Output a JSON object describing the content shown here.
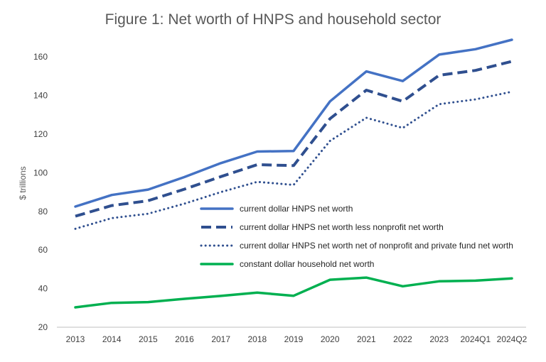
{
  "chart_data": {
    "type": "line",
    "title": "Figure 1: Net worth of HNPS and household sector",
    "xlabel": "",
    "ylabel": "$ trillions",
    "ylim": [
      20,
      170
    ],
    "yticks": [
      20,
      40,
      60,
      80,
      100,
      120,
      140,
      160
    ],
    "grid": false,
    "legend_position": "center-right",
    "categories": [
      "2013",
      "2014",
      "2015",
      "2016",
      "2017",
      "2018",
      "2019",
      "2020",
      "2021",
      "2022",
      "2023",
      "2024Q1",
      "2024Q2"
    ],
    "series": [
      {
        "name": "current dollar HNPS net worth",
        "style": "solid",
        "color": "#4472C4",
        "values": [
          82.5,
          88.5,
          91.3,
          97.8,
          105.0,
          111.0,
          111.3,
          137.0,
          152.5,
          147.5,
          161.2,
          164.0,
          168.9
        ]
      },
      {
        "name": "current dollar HNPS net worth less nonprofit net worth",
        "style": "dashed",
        "color": "#2F4F8F",
        "values": [
          77.5,
          83.0,
          85.5,
          91.5,
          98.0,
          104.2,
          103.7,
          128.0,
          142.8,
          137.0,
          150.5,
          153.0,
          157.7
        ]
      },
      {
        "name": "current dollar HNPS net worth net of nonprofit and private fund net worth",
        "style": "dotted",
        "color": "#2F4F8F",
        "values": [
          71.0,
          76.5,
          78.8,
          84.0,
          90.0,
          95.3,
          93.7,
          116.5,
          128.5,
          123.2,
          135.5,
          138.0,
          142.0
        ]
      },
      {
        "name": "constant dollar household net worth",
        "style": "solid",
        "color": "#00B050",
        "values": [
          30.3,
          32.6,
          33.0,
          34.7,
          36.2,
          37.9,
          36.3,
          44.6,
          45.7,
          41.2,
          43.8,
          44.1,
          45.3
        ]
      }
    ]
  }
}
